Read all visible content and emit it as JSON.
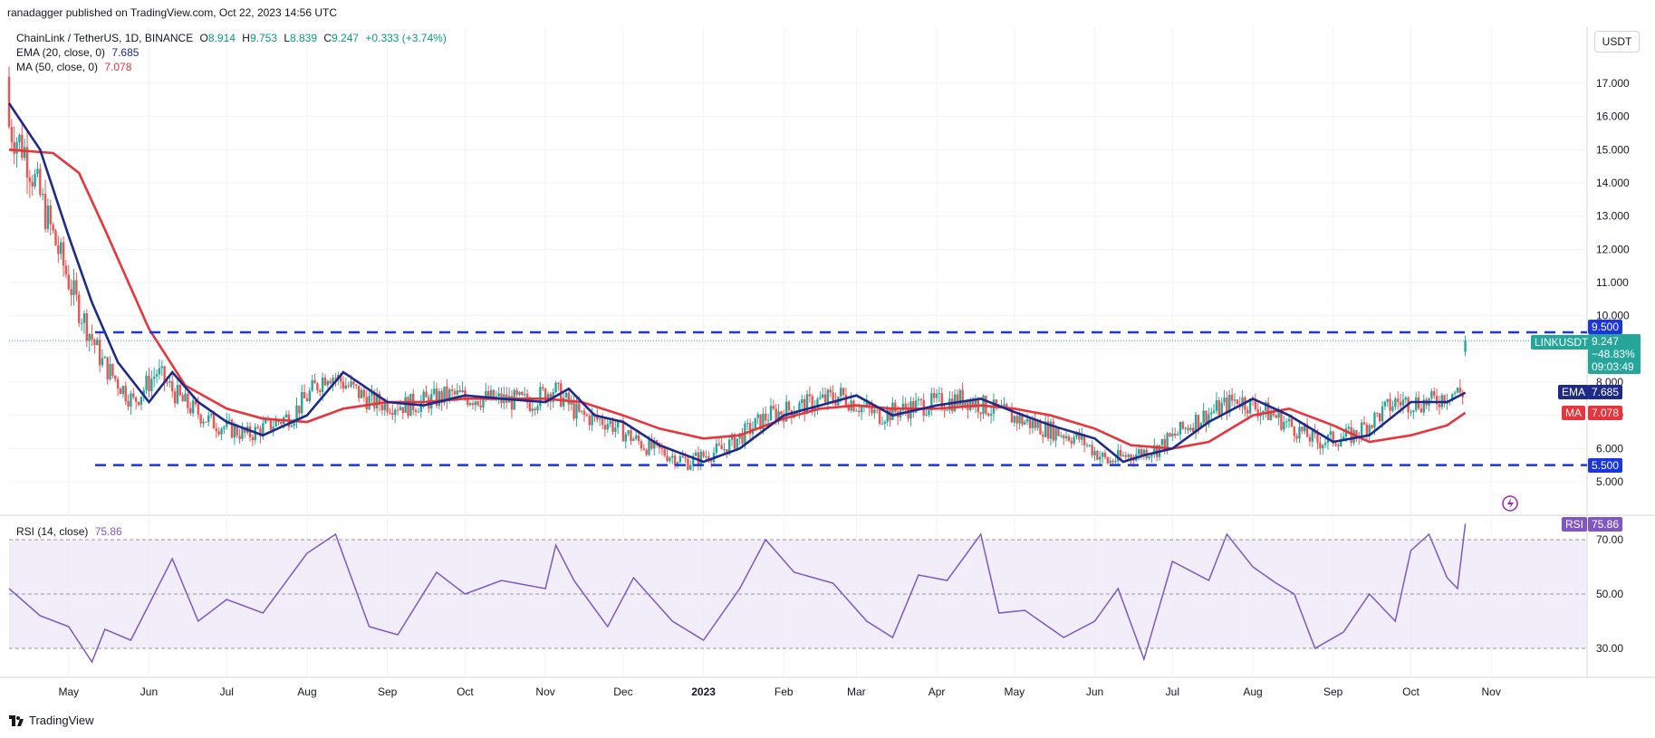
{
  "publisher_line": "ranadagger published on TradingView.com, Oct 22, 2023 14:56 UTC",
  "symbol_line": {
    "title": "ChainLink / TetherUS, 1D, BINANCE",
    "o_label": "O",
    "o": "8.914",
    "h_label": "H",
    "h": "9.753",
    "l_label": "L",
    "l": "8.839",
    "c_label": "C",
    "c": "9.247",
    "change": "+0.333 (+3.74%)"
  },
  "ema_legend": {
    "label": "EMA (20, close, 0)",
    "value": "7.685"
  },
  "ma_legend": {
    "label": "MA (50, close, 0)",
    "value": "7.078"
  },
  "rsi_legend": {
    "label": "RSI (14, close)",
    "value": "75.86"
  },
  "currency_button": "USDT",
  "price_tags": {
    "resistance": "9.500",
    "support": "5.500",
    "symbol": "LINKUSDT",
    "last": "9.247",
    "pct": "−48.83%",
    "countdown": "09:03:49",
    "ema_tag": "EMA",
    "ema": "7.685",
    "ma_tag": "MA",
    "ma": "7.078",
    "rsi_tag": "RSI",
    "rsi": "75.86"
  },
  "brand": "TradingView",
  "colors": {
    "candle_up": "#26a69a",
    "candle_down": "#ef5350",
    "ema": "#1e2a8a",
    "ma": "#e8343a",
    "level_line": "#1a36e0",
    "rsi_line": "#7e57c2",
    "rsi_band": "#ede7f6"
  },
  "chart_data": [
    {
      "type": "candlestick",
      "title": "ChainLink / TetherUS, 1D, BINANCE",
      "y_ticks": [
        5,
        6,
        7,
        8,
        9,
        10,
        11,
        12,
        13,
        14,
        15,
        16,
        17
      ],
      "y_tick_labels": [
        "5.000",
        "6.000",
        "7.000",
        "8.000",
        "9.000",
        "10.000",
        "11.000",
        "12.000",
        "13.000",
        "14.000",
        "15.000",
        "16.000",
        "17.000"
      ],
      "ylim": [
        4.0,
        18.0
      ],
      "x_tick_labels": [
        "May",
        "Jun",
        "Jul",
        "Aug",
        "Sep",
        "Oct",
        "Nov",
        "Dec",
        "2023",
        "Feb",
        "Mar",
        "Apr",
        "May",
        "Jun",
        "Jul",
        "Aug",
        "Sep",
        "Oct",
        "Nov"
      ],
      "horizontal_levels": [
        9.5,
        5.5
      ],
      "series": [
        {
          "name": "EMA (20, close, 0)",
          "x": [
            "2022-04-08",
            "2022-04-20",
            "2022-05-01",
            "2022-05-10",
            "2022-05-20",
            "2022-06-01",
            "2022-06-10",
            "2022-06-20",
            "2022-07-01",
            "2022-07-15",
            "2022-08-01",
            "2022-08-15",
            "2022-09-01",
            "2022-09-15",
            "2022-10-01",
            "2022-10-15",
            "2022-11-01",
            "2022-11-10",
            "2022-11-20",
            "2022-12-01",
            "2022-12-15",
            "2023-01-01",
            "2023-01-15",
            "2023-02-01",
            "2023-02-15",
            "2023-03-01",
            "2023-03-15",
            "2023-04-01",
            "2023-04-18",
            "2023-05-01",
            "2023-05-15",
            "2023-06-01",
            "2023-06-12",
            "2023-06-20",
            "2023-07-01",
            "2023-07-15",
            "2023-08-01",
            "2023-08-15",
            "2023-09-01",
            "2023-09-15",
            "2023-10-01",
            "2023-10-15",
            "2023-10-22"
          ],
          "values": [
            16.4,
            15.0,
            12.4,
            10.4,
            8.6,
            7.4,
            8.3,
            7.4,
            6.8,
            6.4,
            7.0,
            8.3,
            7.4,
            7.3,
            7.6,
            7.5,
            7.4,
            7.8,
            7.0,
            6.8,
            6.1,
            5.6,
            6.0,
            7.0,
            7.3,
            7.6,
            7.0,
            7.3,
            7.5,
            7.1,
            6.7,
            6.3,
            5.6,
            5.8,
            6.0,
            6.8,
            7.5,
            7.0,
            6.2,
            6.4,
            7.4,
            7.4,
            7.685
          ]
        },
        {
          "name": "MA (50, close, 0)",
          "x": [
            "2022-04-08",
            "2022-04-25",
            "2022-05-05",
            "2022-05-15",
            "2022-06-01",
            "2022-06-15",
            "2022-07-01",
            "2022-07-15",
            "2022-08-01",
            "2022-08-15",
            "2022-09-01",
            "2022-09-15",
            "2022-10-01",
            "2022-10-15",
            "2022-11-01",
            "2022-11-15",
            "2022-12-01",
            "2022-12-15",
            "2023-01-01",
            "2023-01-15",
            "2023-02-01",
            "2023-02-15",
            "2023-03-01",
            "2023-03-15",
            "2023-04-01",
            "2023-04-18",
            "2023-05-01",
            "2023-05-15",
            "2023-06-01",
            "2023-06-15",
            "2023-07-01",
            "2023-07-15",
            "2023-08-01",
            "2023-08-15",
            "2023-09-01",
            "2023-09-15",
            "2023-10-01",
            "2023-10-15",
            "2023-10-22"
          ],
          "values": [
            15.0,
            14.9,
            14.3,
            12.6,
            9.6,
            7.9,
            7.2,
            6.9,
            6.8,
            7.2,
            7.4,
            7.4,
            7.5,
            7.5,
            7.5,
            7.4,
            7.0,
            6.6,
            6.3,
            6.4,
            6.9,
            7.2,
            7.3,
            7.2,
            7.2,
            7.3,
            7.2,
            7.0,
            6.6,
            6.1,
            6.0,
            6.2,
            7.0,
            7.2,
            6.7,
            6.2,
            6.4,
            6.7,
            7.078
          ]
        }
      ],
      "last_close": 9.247
    },
    {
      "type": "line",
      "title": "RSI (14, close)",
      "y_ticks": [
        30,
        50,
        70
      ],
      "y_tick_labels": [
        "30.00",
        "50.00",
        "70.00"
      ],
      "ylim": [
        18,
        82
      ],
      "band": [
        30,
        70
      ],
      "series": [
        {
          "name": "RSI (14, close)",
          "x": [
            "2022-04-08",
            "2022-04-20",
            "2022-05-01",
            "2022-05-10",
            "2022-05-15",
            "2022-05-25",
            "2022-06-10",
            "2022-06-20",
            "2022-07-01",
            "2022-07-15",
            "2022-08-01",
            "2022-08-12",
            "2022-08-25",
            "2022-09-05",
            "2022-09-20",
            "2022-10-01",
            "2022-10-15",
            "2022-11-01",
            "2022-11-05",
            "2022-11-12",
            "2022-11-25",
            "2022-12-05",
            "2022-12-20",
            "2023-01-01",
            "2023-01-15",
            "2023-01-25",
            "2023-02-05",
            "2023-02-20",
            "2023-03-05",
            "2023-03-15",
            "2023-03-25",
            "2023-04-05",
            "2023-04-18",
            "2023-04-25",
            "2023-05-05",
            "2023-05-20",
            "2023-06-01",
            "2023-06-10",
            "2023-06-20",
            "2023-07-01",
            "2023-07-15",
            "2023-07-22",
            "2023-08-01",
            "2023-08-10",
            "2023-08-17",
            "2023-08-25",
            "2023-09-05",
            "2023-09-15",
            "2023-09-25",
            "2023-10-01",
            "2023-10-08",
            "2023-10-15",
            "2023-10-19",
            "2023-10-22"
          ],
          "values": [
            52,
            42,
            38,
            25,
            37,
            33,
            63,
            40,
            48,
            43,
            65,
            72,
            38,
            35,
            58,
            50,
            55,
            52,
            68,
            55,
            38,
            56,
            40,
            33,
            52,
            70,
            58,
            54,
            40,
            34,
            57,
            55,
            72,
            43,
            44,
            34,
            40,
            52,
            26,
            62,
            55,
            72,
            60,
            54,
            50,
            30,
            36,
            50,
            40,
            66,
            72,
            56,
            52,
            75.86
          ]
        }
      ]
    }
  ]
}
